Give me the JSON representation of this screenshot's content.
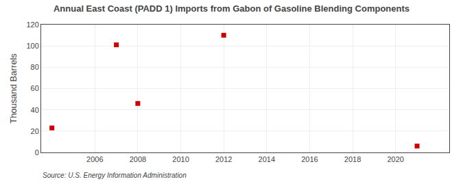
{
  "chart_data": {
    "type": "scatter",
    "title": "Annual East Coast (PADD 1) Imports from Gabon of Gasoline Blending Components",
    "y_label": "Thousand Barrels",
    "annotations": [
      "Source: U.S. Energy Information Administration"
    ],
    "x": [
      2004,
      2007,
      2008,
      2012,
      2021
    ],
    "values": [
      23,
      101,
      46,
      110,
      6
    ],
    "color": "#cc0000",
    "marker": "square",
    "xlim": [
      2003.5,
      2022.5
    ],
    "xticks": [
      2006,
      2008,
      2010,
      2012,
      2014,
      2016,
      2018,
      2020
    ],
    "ylim": [
      0,
      120
    ],
    "yticks": [
      0,
      20,
      40,
      60,
      80,
      100,
      120
    ],
    "grid": true
  }
}
